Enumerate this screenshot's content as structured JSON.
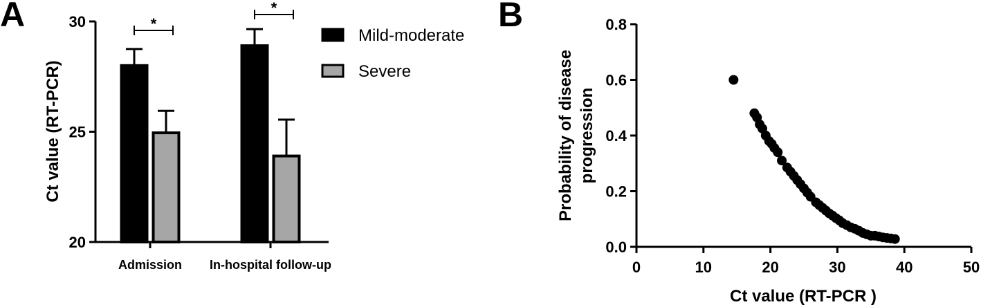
{
  "chart_data": [
    {
      "panel": "A",
      "type": "bar",
      "categories": [
        "Admission",
        "In-hospital follow-up"
      ],
      "series": [
        {
          "name": "Mild-moderate",
          "values": [
            28.0,
            28.9
          ],
          "errors": [
            0.75,
            0.75
          ],
          "color": "#000000"
        },
        {
          "name": "Severe",
          "values": [
            24.95,
            23.9
          ],
          "errors": [
            1.0,
            1.65
          ],
          "color": "#a6a6a6"
        }
      ],
      "ylabel": "Ct value (RT-PCR)",
      "xlabel": "",
      "ylim": [
        20,
        30
      ],
      "yticks": [
        "20",
        "25",
        "30"
      ],
      "significance": [
        "*",
        "*"
      ],
      "legend_position": "top-right"
    },
    {
      "panel": "B",
      "type": "scatter",
      "xlabel": "Ct value (RT-PCR )",
      "ylabel_lines": [
        "Probability of disease",
        "progression"
      ],
      "xlim": [
        0,
        50
      ],
      "ylim": [
        0,
        0.8
      ],
      "xticks": [
        "0",
        "10",
        "20",
        "30",
        "40",
        "50"
      ],
      "yticks": [
        "0.0",
        "0.2",
        "0.4",
        "0.6",
        "0.8"
      ],
      "points": [
        [
          14.5,
          0.6
        ],
        [
          17.6,
          0.48
        ],
        [
          18.0,
          0.465
        ],
        [
          18.4,
          0.44
        ],
        [
          18.8,
          0.425
        ],
        [
          19.3,
          0.4
        ],
        [
          19.8,
          0.38
        ],
        [
          20.2,
          0.37
        ],
        [
          20.6,
          0.355
        ],
        [
          21.1,
          0.34
        ],
        [
          21.7,
          0.31
        ],
        [
          22.5,
          0.285
        ],
        [
          23.0,
          0.27
        ],
        [
          23.5,
          0.255
        ],
        [
          24.0,
          0.24
        ],
        [
          24.5,
          0.225
        ],
        [
          25.0,
          0.21
        ],
        [
          25.5,
          0.195
        ],
        [
          26.0,
          0.18
        ],
        [
          26.8,
          0.16
        ],
        [
          27.3,
          0.15
        ],
        [
          27.8,
          0.14
        ],
        [
          28.3,
          0.13
        ],
        [
          28.8,
          0.12
        ],
        [
          29.3,
          0.112
        ],
        [
          29.8,
          0.103
        ],
        [
          30.3,
          0.095
        ],
        [
          30.8,
          0.085
        ],
        [
          31.4,
          0.078
        ],
        [
          32.0,
          0.07
        ],
        [
          32.6,
          0.065
        ],
        [
          33.2,
          0.058
        ],
        [
          33.8,
          0.05
        ],
        [
          34.4,
          0.045
        ],
        [
          35.0,
          0.04
        ],
        [
          35.6,
          0.04
        ],
        [
          36.2,
          0.037
        ],
        [
          36.8,
          0.034
        ],
        [
          37.4,
          0.032
        ],
        [
          38.0,
          0.03
        ],
        [
          38.6,
          0.028
        ]
      ]
    }
  ]
}
